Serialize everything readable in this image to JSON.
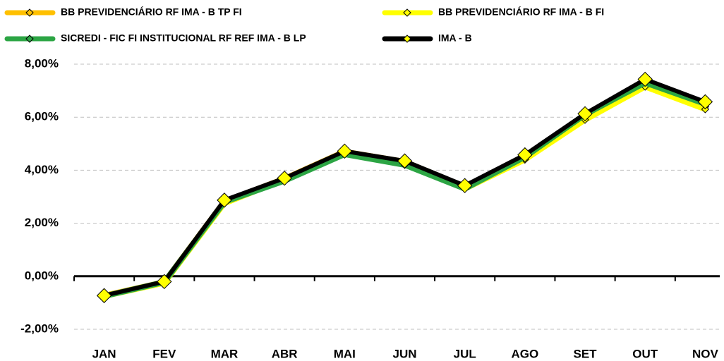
{
  "chart_data": {
    "type": "line",
    "categories": [
      "JAN",
      "FEV",
      "MAR",
      "ABR",
      "MAI",
      "JUN",
      "JUL",
      "AGO",
      "SET",
      "OUT",
      "NOV"
    ],
    "series": [
      {
        "name": "BB PREVIDENCIÁRIO RF IMA - B TP FI",
        "color": "#ffc000",
        "marker_fill": "#ffc000",
        "values": [
          -0.73,
          -0.22,
          2.82,
          3.68,
          4.7,
          4.32,
          3.38,
          4.5,
          6.0,
          7.25,
          6.4
        ]
      },
      {
        "name": "BB PREVIDENCIÁRIO RF IMA - B FI",
        "color": "#ffff00",
        "marker_fill": "#ffff00",
        "values": [
          -0.75,
          -0.25,
          2.75,
          3.65,
          4.65,
          4.3,
          3.3,
          4.4,
          5.9,
          7.15,
          6.3
        ]
      },
      {
        "name": "SICREDI - FIC FI INSTITUCIONAL RF REF IMA - B LP",
        "color": "#2ca544",
        "marker_fill": "#2ca544",
        "values": [
          -0.75,
          -0.22,
          2.8,
          3.6,
          4.6,
          4.2,
          3.3,
          4.5,
          6.1,
          7.3,
          6.5
        ]
      },
      {
        "name": "IMA - B",
        "color": "#000000",
        "marker_fill": "#ffff00",
        "values": [
          -0.73,
          -0.2,
          2.87,
          3.7,
          4.72,
          4.35,
          3.42,
          4.58,
          6.13,
          7.43,
          6.58
        ]
      }
    ],
    "ylim": [
      -2,
      8
    ],
    "yticks": [
      {
        "value": -2,
        "label": "-2,00%"
      },
      {
        "value": 0,
        "label": "0,00%"
      },
      {
        "value": 2,
        "label": "2,00%"
      },
      {
        "value": 4,
        "label": "4,00%"
      },
      {
        "value": 6,
        "label": "6,00%"
      },
      {
        "value": 8,
        "label": "8,00%"
      }
    ],
    "grid": true,
    "legend": "top"
  }
}
